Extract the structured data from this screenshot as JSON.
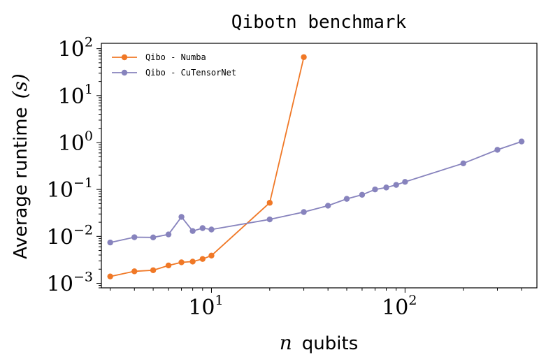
{
  "chart_data": {
    "type": "line",
    "title": "Qibotn benchmark",
    "xlabel_var": "n",
    "xlabel": "qubits",
    "ylabel": "Average runtime",
    "ylabel_var": "(s)",
    "xscale": "log",
    "yscale": "log",
    "xlim": [
      2.7,
      480
    ],
    "ylim": [
      0.0008,
      130
    ],
    "xticks": [
      {
        "value": 10,
        "base": "10",
        "exp": "1"
      },
      {
        "value": 100,
        "base": "10",
        "exp": "2"
      }
    ],
    "yticks": [
      {
        "value": 0.001,
        "base": "10",
        "exp": "−3"
      },
      {
        "value": 0.01,
        "base": "10",
        "exp": "−2"
      },
      {
        "value": 0.1,
        "base": "10",
        "exp": "−1"
      },
      {
        "value": 1,
        "base": "10",
        "exp": "0"
      },
      {
        "value": 10,
        "base": "10",
        "exp": "1"
      },
      {
        "value": 100,
        "base": "10",
        "exp": "2"
      }
    ],
    "legend_position": "top-left",
    "series": [
      {
        "name": "Qibo - Numba",
        "color": "#f07826",
        "x": [
          3,
          4,
          5,
          6,
          7,
          8,
          9,
          10,
          20,
          30
        ],
        "y": [
          0.0014,
          0.0018,
          0.0019,
          0.0024,
          0.0028,
          0.0029,
          0.0033,
          0.0039,
          0.052,
          66
        ]
      },
      {
        "name": "Qibo - CuTensorNet",
        "color": "#8783bd",
        "x": [
          3,
          4,
          5,
          6,
          7,
          8,
          9,
          10,
          20,
          30,
          40,
          50,
          60,
          70,
          80,
          90,
          100,
          200,
          300,
          400
        ],
        "y": [
          0.0074,
          0.0096,
          0.0095,
          0.011,
          0.026,
          0.013,
          0.015,
          0.014,
          0.023,
          0.033,
          0.045,
          0.063,
          0.077,
          0.1,
          0.11,
          0.125,
          0.145,
          0.36,
          0.7,
          1.05
        ]
      }
    ]
  }
}
